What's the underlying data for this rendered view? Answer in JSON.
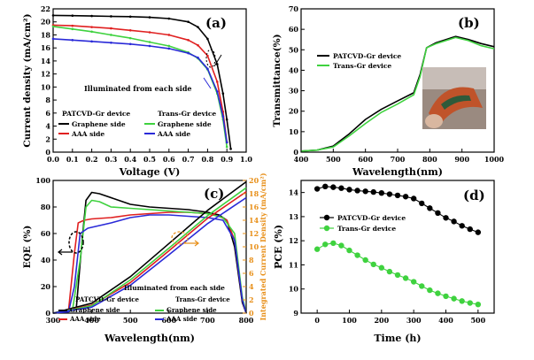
{
  "chart_data": [
    {
      "panel": "(a)",
      "type": "line",
      "xlabel": "Voltage (V)",
      "ylabel": "Current density (mA/cm²)",
      "xlim": [
        0.0,
        1.0
      ],
      "ylim": [
        0,
        22
      ],
      "xticks": [
        "0.0",
        "0.1",
        "0.2",
        "0.3",
        "0.4",
        "0.5",
        "0.6",
        "0.7",
        "0.8",
        "0.9",
        "1.0"
      ],
      "yticks": [
        "0",
        "2",
        "4",
        "6",
        "8",
        "10",
        "12",
        "14",
        "16",
        "18",
        "20",
        "22"
      ],
      "annotation": "Illuminated from each side",
      "legend_groups": [
        "PATCVD-Gr device",
        "Trans-Gr device"
      ],
      "series": [
        {
          "name": "Graphene side",
          "group": "PATCVD-Gr device",
          "color": "#000000",
          "x": [
            0,
            0.1,
            0.2,
            0.3,
            0.4,
            0.5,
            0.6,
            0.7,
            0.75,
            0.8,
            0.85,
            0.88,
            0.9,
            0.92
          ],
          "y": [
            21.0,
            20.95,
            20.9,
            20.85,
            20.8,
            20.7,
            20.5,
            20.0,
            19.2,
            17.4,
            13.5,
            9.0,
            5.0,
            0.5
          ]
        },
        {
          "name": "AAA side",
          "group": "PATCVD-Gr device",
          "color": "#e02020",
          "x": [
            0,
            0.1,
            0.2,
            0.3,
            0.4,
            0.5,
            0.6,
            0.7,
            0.75,
            0.8,
            0.85,
            0.88,
            0.9
          ],
          "y": [
            19.5,
            19.4,
            19.2,
            19.0,
            18.7,
            18.4,
            18.0,
            17.2,
            16.4,
            14.8,
            10.8,
            6.2,
            1.5
          ]
        },
        {
          "name": "Graphene side",
          "group": "Trans-Gr device",
          "color": "#3fd23f",
          "x": [
            0,
            0.1,
            0.2,
            0.3,
            0.4,
            0.5,
            0.6,
            0.7,
            0.75,
            0.8,
            0.85,
            0.88,
            0.9
          ],
          "y": [
            19.3,
            18.9,
            18.5,
            18.0,
            17.5,
            16.9,
            16.3,
            15.3,
            14.4,
            12.7,
            9.0,
            5.0,
            0.8
          ]
        },
        {
          "name": "AAA side",
          "group": "Trans-Gr device",
          "color": "#2a2ad8",
          "x": [
            0,
            0.1,
            0.2,
            0.3,
            0.4,
            0.5,
            0.6,
            0.7,
            0.75,
            0.8,
            0.85,
            0.88,
            0.9
          ],
          "y": [
            17.4,
            17.2,
            17.0,
            16.8,
            16.6,
            16.3,
            15.9,
            15.2,
            14.5,
            12.8,
            9.3,
            5.5,
            1.5
          ]
        }
      ]
    },
    {
      "panel": "(b)",
      "type": "line",
      "xlabel": "Wavelength(nm)",
      "ylabel": "Transmittance(%)",
      "xlim": [
        400,
        1000
      ],
      "ylim": [
        0,
        70
      ],
      "xticks": [
        "400",
        "500",
        "600",
        "700",
        "800",
        "900",
        "1000"
      ],
      "yticks": [
        "0",
        "10",
        "20",
        "30",
        "40",
        "50",
        "60",
        "70"
      ],
      "series": [
        {
          "name": "PATCVD-Gr device",
          "color": "#000000",
          "x": [
            400,
            450,
            500,
            550,
            600,
            650,
            700,
            750,
            770,
            790,
            820,
            850,
            880,
            920,
            960,
            1000
          ],
          "y": [
            0.5,
            1,
            3,
            9,
            16,
            21,
            25,
            29,
            38,
            51,
            53.5,
            55,
            56.5,
            55,
            53,
            51.5
          ]
        },
        {
          "name": "Trans-Gr device",
          "color": "#3fd23f",
          "x": [
            400,
            450,
            500,
            550,
            600,
            650,
            700,
            750,
            770,
            790,
            820,
            850,
            880,
            920,
            960,
            1000
          ],
          "y": [
            0.5,
            1,
            2.5,
            8,
            14,
            19.5,
            23.5,
            28,
            37,
            51,
            53,
            54.5,
            56,
            54.5,
            52,
            50.5
          ]
        }
      ]
    },
    {
      "panel": "(c)",
      "type": "line",
      "xlabel": "Wavelength(nm)",
      "ylabel": "EQE (%)",
      "y2label": "Integrated Current Density (mA/cm²)",
      "xlim": [
        300,
        800
      ],
      "ylim": [
        0,
        100
      ],
      "y2lim": [
        0,
        20
      ],
      "xticks": [
        "300",
        "400",
        "500",
        "600",
        "700",
        "800"
      ],
      "yticks": [
        "0",
        "20",
        "40",
        "60",
        "80",
        "100"
      ],
      "y2ticks": [
        "0",
        "2",
        "4",
        "6",
        "8",
        "10",
        "12",
        "14",
        "16",
        "18",
        "20"
      ],
      "annotation": "Illuminated from each side",
      "legend_groups": [
        "PATCVD-Gr device",
        "Trans-Gr device"
      ],
      "series": [
        {
          "name": "Graphene side",
          "group": "PATCVD-Gr device",
          "color": "#000000",
          "x": [
            300,
            340,
            360,
            375,
            385,
            400,
            420,
            460,
            500,
            550,
            600,
            650,
            700,
            730,
            750,
            770,
            790,
            800
          ],
          "y": [
            0,
            1,
            4,
            55,
            85,
            91,
            90,
            86,
            82,
            80,
            79,
            78,
            76,
            74,
            70,
            50,
            8,
            0
          ]
        },
        {
          "name": "AAA side",
          "group": "PATCVD-Gr device",
          "color": "#e02020",
          "x": [
            300,
            340,
            355,
            365,
            380,
            400,
            450,
            500,
            550,
            600,
            650,
            700,
            730,
            750,
            770,
            790,
            800
          ],
          "y": [
            0,
            2,
            45,
            68,
            70,
            71,
            72,
            74,
            75,
            76,
            76,
            75,
            73,
            70,
            55,
            10,
            0
          ]
        },
        {
          "name": "Graphene side",
          "group": "Trans-Gr device",
          "color": "#3fd23f",
          "x": [
            300,
            350,
            370,
            385,
            400,
            420,
            450,
            500,
            550,
            600,
            650,
            700,
            740,
            770,
            790,
            800
          ],
          "y": [
            0,
            2,
            40,
            80,
            85,
            84,
            80,
            79,
            78,
            77,
            76,
            75,
            72,
            60,
            12,
            0
          ]
        },
        {
          "name": "AAA side",
          "group": "Trans-Gr device",
          "color": "#2a2ad8",
          "x": [
            300,
            340,
            355,
            370,
            390,
            420,
            450,
            500,
            550,
            600,
            650,
            700,
            740,
            770,
            790,
            800
          ],
          "y": [
            0,
            1,
            20,
            60,
            64,
            66,
            68,
            72,
            74,
            74,
            73,
            72,
            70,
            55,
            10,
            0
          ]
        },
        {
          "name": "Graphene side (integrated)",
          "axis": "y2",
          "color": "#000000",
          "x": [
            300,
            400,
            500,
            600,
            700,
            800
          ],
          "y": [
            0,
            1.5,
            5.5,
            10.5,
            15.5,
            19.8
          ]
        },
        {
          "name": "AAA side (integrated)",
          "axis": "y2",
          "color": "#e02020",
          "x": [
            300,
            400,
            500,
            600,
            700,
            800
          ],
          "y": [
            0,
            1.2,
            4.6,
            9.4,
            14.3,
            18.3
          ]
        },
        {
          "name": "Graphene side (integrated, Trans)",
          "axis": "y2",
          "color": "#3fd23f",
          "x": [
            300,
            400,
            500,
            600,
            700,
            800
          ],
          "y": [
            0,
            1.1,
            5.0,
            9.8,
            14.7,
            18.9
          ]
        },
        {
          "name": "AAA side (integrated, Trans)",
          "axis": "y2",
          "color": "#2a2ad8",
          "x": [
            300,
            400,
            500,
            600,
            700,
            800
          ],
          "y": [
            0,
            0.9,
            4.2,
            8.8,
            13.5,
            17.4
          ]
        }
      ]
    },
    {
      "panel": "(d)",
      "type": "line",
      "xlabel": "Time (h)",
      "ylabel": "PCE (%)",
      "xlim": [
        -50,
        550
      ],
      "ylim": [
        9,
        14.5
      ],
      "xticks": [
        "0",
        "100",
        "200",
        "300",
        "400",
        "500"
      ],
      "yticks": [
        "9",
        "10",
        "11",
        "12",
        "13",
        "14"
      ],
      "series": [
        {
          "name": "PATCVD-Gr device",
          "color": "#000000",
          "x": [
            0,
            25,
            50,
            75,
            100,
            125,
            150,
            175,
            200,
            225,
            250,
            275,
            300,
            325,
            350,
            375,
            400,
            425,
            450,
            475,
            500
          ],
          "y": [
            14.15,
            14.25,
            14.22,
            14.18,
            14.12,
            14.08,
            14.05,
            14.02,
            13.98,
            13.93,
            13.88,
            13.83,
            13.75,
            13.55,
            13.35,
            13.15,
            12.95,
            12.8,
            12.62,
            12.48,
            12.35
          ]
        },
        {
          "name": "Trans-Gr device",
          "color": "#3fd23f",
          "x": [
            0,
            25,
            50,
            75,
            100,
            125,
            150,
            175,
            200,
            225,
            250,
            275,
            300,
            325,
            350,
            375,
            400,
            425,
            450,
            475,
            500
          ],
          "y": [
            11.65,
            11.85,
            11.9,
            11.8,
            11.6,
            11.4,
            11.2,
            11.02,
            10.88,
            10.72,
            10.58,
            10.45,
            10.3,
            10.12,
            9.95,
            9.82,
            9.7,
            9.6,
            9.5,
            9.42,
            9.36
          ]
        }
      ]
    }
  ]
}
